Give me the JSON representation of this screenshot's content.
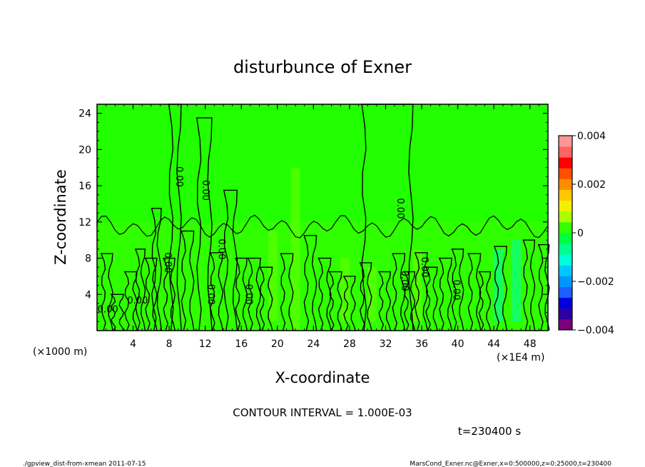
{
  "chart_data": {
    "type": "heatmap",
    "title": "disturbunce of Exner",
    "xlabel": "X-coordinate",
    "ylabel": "Z-coordinate",
    "x_unit_left": "(×1000 m)",
    "x_unit_right": "(×1E4 m)",
    "x_ticks": [
      "4",
      "8",
      "12",
      "16",
      "20",
      "24",
      "28",
      "32",
      "36",
      "40",
      "44",
      "48"
    ],
    "y_ticks": [
      "4",
      "8",
      "12",
      "16",
      "20",
      "24"
    ],
    "xlim": [
      0,
      50
    ],
    "ylim": [
      0,
      25
    ],
    "colorbar": {
      "ticks": [
        "0.004",
        "0.002",
        "0",
        "−0.002",
        "−0.004"
      ],
      "range": [
        -0.004,
        0.004
      ],
      "colors": [
        "#7b007b",
        "#2d00a0",
        "#0000dc",
        "#1e5fff",
        "#0096ff",
        "#00c8ff",
        "#00ffd7",
        "#00ff8c",
        "#00ff3c",
        "#32ff00",
        "#aaff00",
        "#f0f000",
        "#ffc800",
        "#ff8c00",
        "#ff5000",
        "#ff0000",
        "#ff6464",
        "#ff9696"
      ]
    },
    "contour_labels": [
      "0.00",
      "0.00",
      "0.00",
      "0.00",
      "0.00",
      "0.00",
      "0.00",
      "0.00",
      "0.00",
      "0.00",
      "0.00",
      "0.00"
    ]
  },
  "annotations": {
    "contour_interval": "CONTOUR INTERVAL = 1.000E-03",
    "time": "t=230400 s",
    "footer_left": "./gpview_dist-from-xmean  2011-07-15",
    "footer_right": "MarsCond_Exner.nc@Exner,x=0:500000,z=0:25000,t=230400"
  }
}
